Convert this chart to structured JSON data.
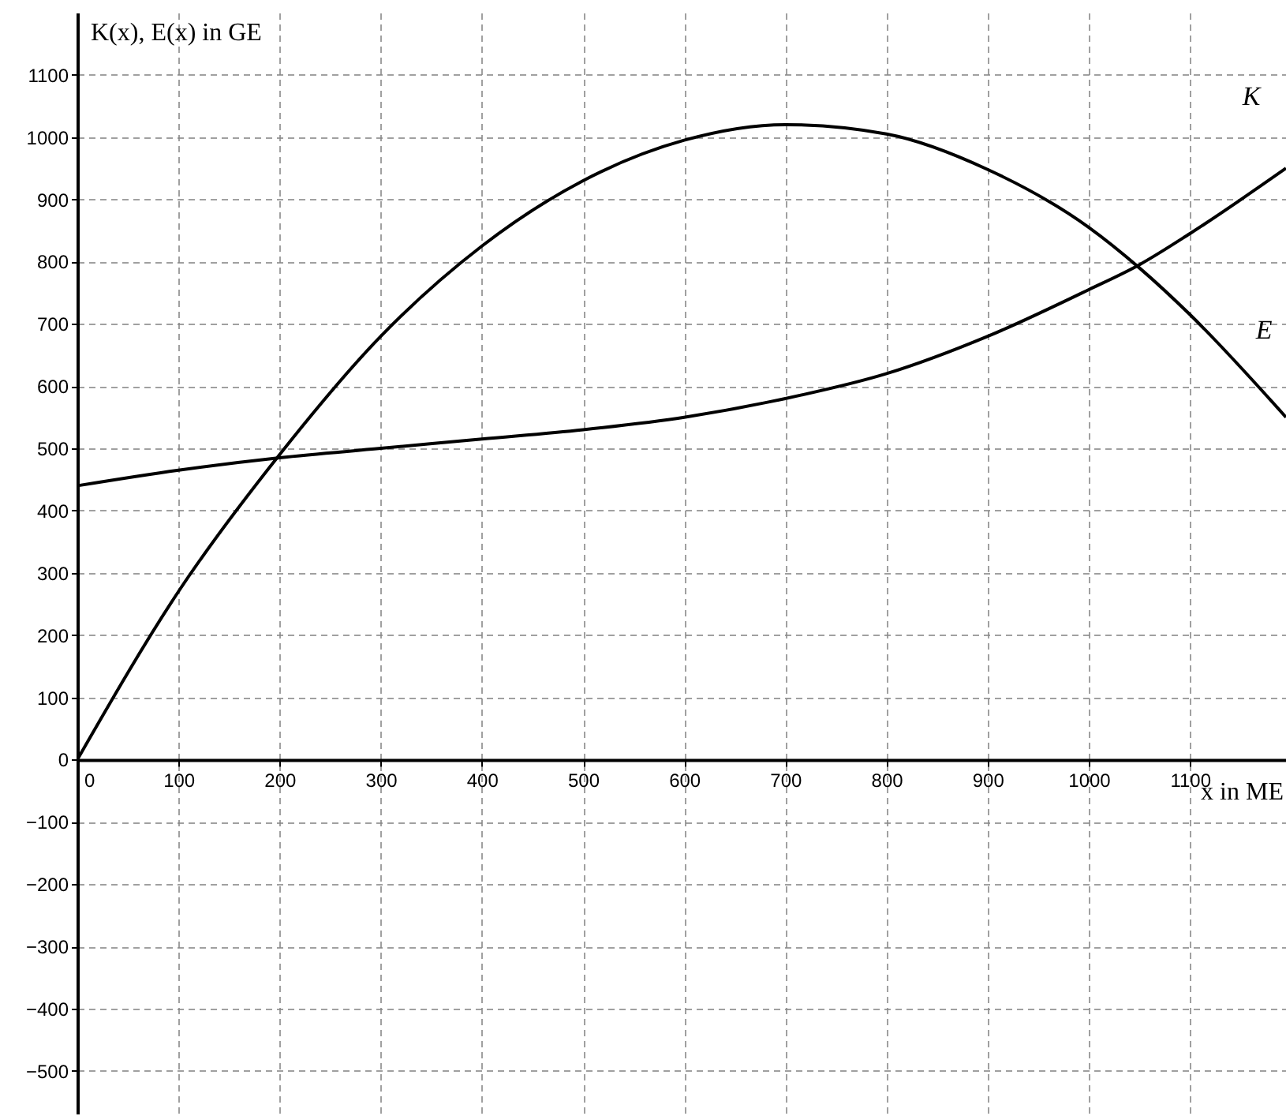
{
  "chart_data": {
    "type": "line",
    "xlabel": "x in ME",
    "ylabel": "K(x), E(x) in GE",
    "x": [
      0,
      100,
      200,
      300,
      400,
      500,
      600,
      700,
      800,
      900,
      1000,
      1050,
      1100,
      1195
    ],
    "series": [
      {
        "name": "K",
        "color": "#000000",
        "values": [
          440,
          465,
          485,
          500,
          515,
          530,
          550,
          580,
          620,
          680,
          755,
          795,
          845,
          950
        ]
      },
      {
        "name": "E",
        "color": "#000000",
        "values": [
          0,
          270,
          490,
          680,
          825,
          930,
          995,
          1020,
          1005,
          948,
          855,
          790,
          715,
          550
        ]
      }
    ],
    "xlim": [
      0,
      1195
    ],
    "ylim": [
      -570,
      1200
    ],
    "xticks": [
      0,
      100,
      200,
      300,
      400,
      500,
      600,
      700,
      800,
      900,
      1000,
      1100
    ],
    "yticks": [
      -500,
      -400,
      -300,
      -200,
      -100,
      0,
      100,
      200,
      300,
      400,
      500,
      600,
      700,
      800,
      900,
      1000,
      1100
    ],
    "grid": true,
    "marker": "none",
    "line_style": "solid"
  }
}
